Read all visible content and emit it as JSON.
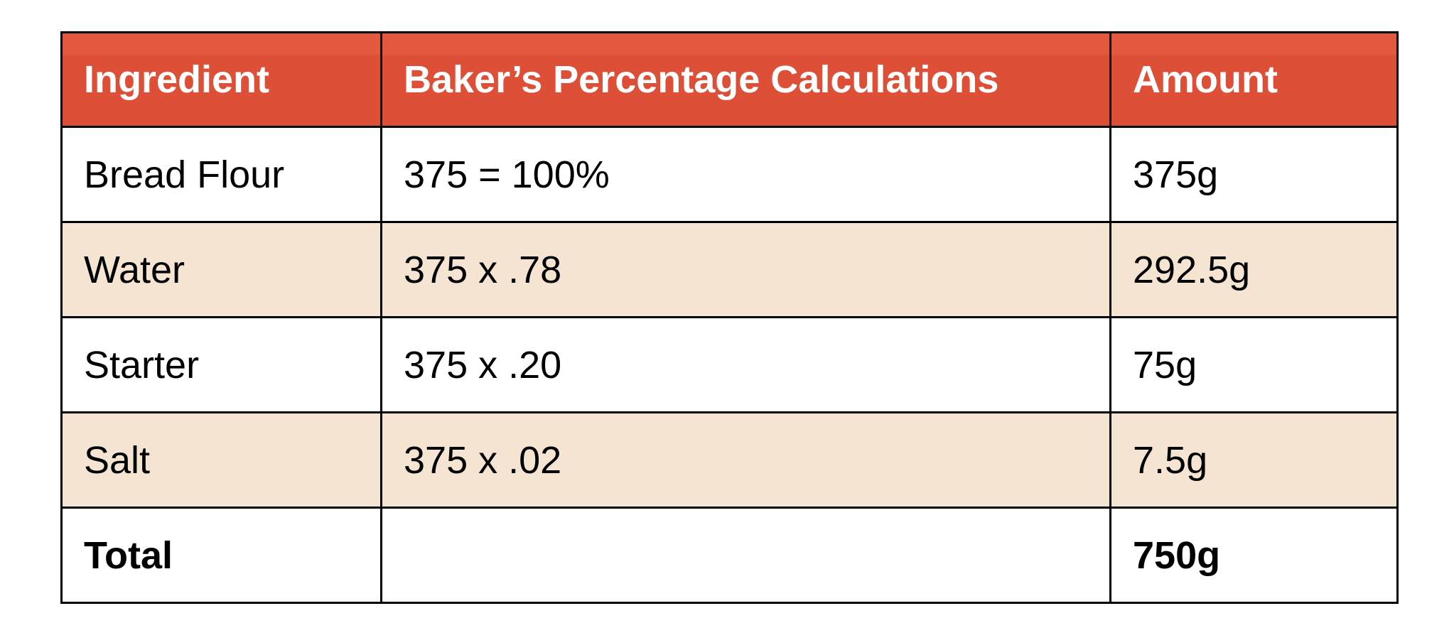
{
  "table": {
    "headers": [
      "Ingredient",
      "Baker’s Percentage Calculations",
      "Amount"
    ],
    "rows": [
      {
        "ingredient": "Bread Flour",
        "calculation": "375 = 100%",
        "amount": "375g"
      },
      {
        "ingredient": "Water",
        "calculation": "375 x .78",
        "amount": "292.5g"
      },
      {
        "ingredient": "Starter",
        "calculation": "375 x .20",
        "amount": "75g"
      },
      {
        "ingredient": "Salt",
        "calculation": "375 x .02",
        "amount": "7.5g"
      },
      {
        "ingredient": "Total",
        "amount": "750g"
      }
    ]
  }
}
